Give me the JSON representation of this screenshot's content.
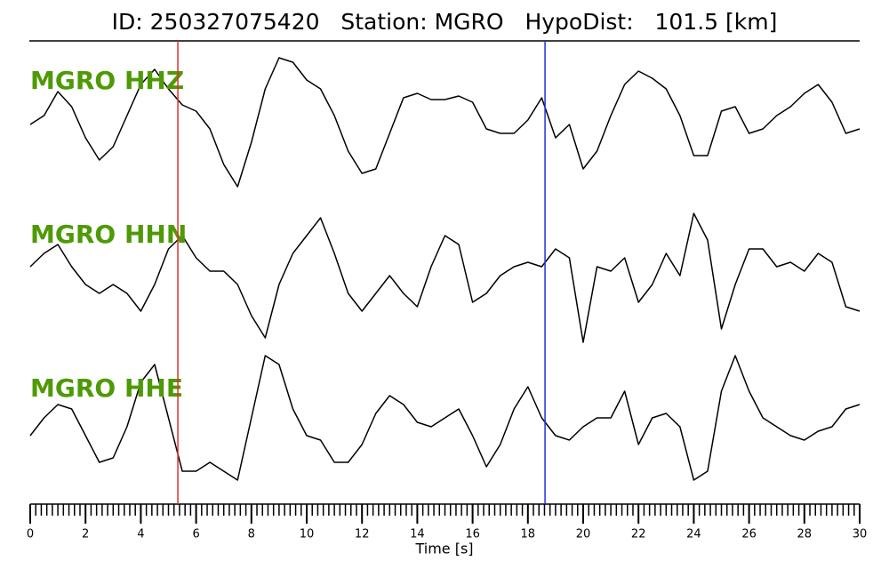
{
  "chart_data": {
    "type": "seismogram",
    "title": "ID: 250327075420   Station: MGRO   HypoDist:   101.5 [km]",
    "x_label": "Time [s]",
    "xlim": [
      0,
      30
    ],
    "xticks": [
      0,
      2,
      4,
      6,
      8,
      10,
      12,
      14,
      16,
      18,
      20,
      22,
      24,
      26,
      28,
      30
    ],
    "minor_tick_step": 0.2,
    "ylim": [
      -85,
      85
    ],
    "label_color": "#4e9a06",
    "markers": [
      {
        "x": 5.34,
        "color": "#e03030"
      },
      {
        "x": 18.62,
        "color": "#2030e0"
      }
    ],
    "x": [
      0,
      0.5,
      1,
      1.5,
      2,
      2.5,
      3,
      3.5,
      4,
      4.5,
      5,
      5.5,
      6,
      6.5,
      7,
      7.5,
      8,
      8.5,
      9,
      9.5,
      10,
      10.5,
      11,
      11.5,
      12,
      12.5,
      13,
      13.5,
      14,
      14.5,
      15,
      15.5,
      16,
      16.5,
      17,
      17.5,
      18,
      18.5,
      19,
      19.5,
      20,
      20.5,
      21,
      21.5,
      22,
      22.5,
      23,
      23.5,
      24,
      24.5,
      25,
      25.5,
      26,
      26.5,
      27,
      27.5,
      28,
      28.5,
      29,
      29.5,
      30
    ],
    "series": [
      {
        "name": "MGRO HHZ",
        "color": "#000000",
        "values": [
          -4,
          6,
          33,
          16,
          -19,
          -44,
          -29,
          6,
          41,
          58,
          36,
          18,
          11,
          -9,
          -49,
          -74,
          -24,
          36,
          71,
          66,
          46,
          36,
          6,
          -34,
          -59,
          -54,
          -14,
          26,
          31,
          24,
          24,
          28,
          21,
          -9,
          -14,
          -14,
          1,
          26,
          -19,
          -4,
          -54,
          -34,
          6,
          41,
          56,
          48,
          36,
          6,
          -39,
          -39,
          11,
          16,
          -14,
          -9,
          6,
          16,
          31,
          41,
          21,
          -14,
          -9
        ]
      },
      {
        "name": "MGRO HHN",
        "color": "#000000",
        "values": [
          13,
          28,
          38,
          13,
          -7,
          -17,
          -7,
          -17,
          -37,
          -7,
          33,
          48,
          23,
          8,
          8,
          -7,
          -42,
          -67,
          -7,
          28,
          48,
          68,
          28,
          -17,
          -37,
          -17,
          3,
          -17,
          -32,
          13,
          48,
          38,
          -27,
          -17,
          3,
          13,
          18,
          13,
          33,
          23,
          -72,
          13,
          8,
          23,
          -27,
          -7,
          28,
          3,
          73,
          43,
          -57,
          -7,
          33,
          33,
          13,
          18,
          8,
          28,
          18,
          -32,
          -37
        ]
      },
      {
        "name": "MGRO HHE",
        "color": "#000000",
        "values": [
          -17,
          3,
          18,
          13,
          -17,
          -47,
          -42,
          -7,
          43,
          63,
          3,
          -57,
          -57,
          -47,
          -57,
          -67,
          3,
          73,
          63,
          13,
          -17,
          -22,
          -47,
          -47,
          -27,
          8,
          28,
          18,
          -2,
          -7,
          3,
          13,
          -17,
          -52,
          -27,
          13,
          38,
          3,
          -17,
          -22,
          -7,
          3,
          3,
          33,
          -27,
          3,
          8,
          -7,
          -67,
          -57,
          33,
          73,
          33,
          3,
          -7,
          -17,
          -22,
          -12,
          -7,
          13,
          18
        ]
      }
    ]
  }
}
